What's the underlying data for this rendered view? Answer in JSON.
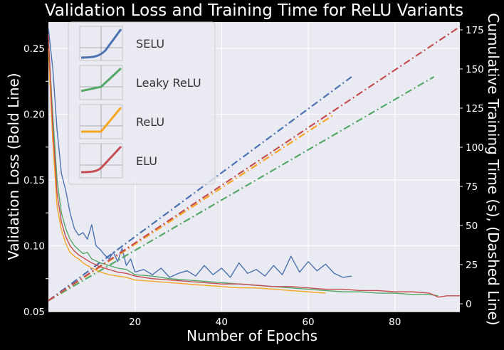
{
  "chart_data": {
    "type": "line",
    "title": "Validation Loss and Training Time for ReLU Variants",
    "xlabel": "Number of Epochs",
    "ylabel_left": "Validation Loss (Bold Line)",
    "ylabel_right": "Cumulative Training Time (s),  (Dashed Line)",
    "xlim": [
      0,
      95
    ],
    "ylim_left": [
      0.05,
      0.27
    ],
    "ylim_right": [
      -5,
      180
    ],
    "x_ticks": [
      20,
      40,
      60,
      80
    ],
    "y_ticks_left": [
      0.05,
      0.1,
      0.15,
      0.2,
      0.25
    ],
    "y_ticks_left_labels": [
      "0.05",
      "0.10",
      "0.15",
      "0.20",
      "0.25"
    ],
    "y_ticks_right": [
      0,
      25,
      50,
      75,
      100,
      125,
      150,
      175
    ],
    "grid": true,
    "legend_position": "top-left",
    "series": [
      {
        "name": "SELU",
        "color": "#4c72b0",
        "loss": [
          [
            0,
            0.265
          ],
          [
            1,
            0.235
          ],
          [
            2,
            0.188
          ],
          [
            3,
            0.155
          ],
          [
            4,
            0.142
          ],
          [
            5,
            0.125
          ],
          [
            6,
            0.113
          ],
          [
            7,
            0.108
          ],
          [
            8,
            0.11
          ],
          [
            9,
            0.105
          ],
          [
            10,
            0.116
          ],
          [
            11,
            0.1
          ],
          [
            12,
            0.097
          ],
          [
            13,
            0.093
          ],
          [
            14,
            0.09
          ],
          [
            15,
            0.095
          ],
          [
            16,
            0.088
          ],
          [
            17,
            0.098
          ],
          [
            18,
            0.085
          ],
          [
            19,
            0.09
          ],
          [
            20,
            0.08
          ],
          [
            22,
            0.082
          ],
          [
            24,
            0.078
          ],
          [
            26,
            0.083
          ],
          [
            28,
            0.076
          ],
          [
            30,
            0.079
          ],
          [
            32,
            0.081
          ],
          [
            34,
            0.077
          ],
          [
            36,
            0.085
          ],
          [
            38,
            0.078
          ],
          [
            40,
            0.083
          ],
          [
            42,
            0.076
          ],
          [
            44,
            0.087
          ],
          [
            46,
            0.079
          ],
          [
            48,
            0.082
          ],
          [
            50,
            0.077
          ],
          [
            52,
            0.085
          ],
          [
            54,
            0.078
          ],
          [
            56,
            0.092
          ],
          [
            58,
            0.08
          ],
          [
            60,
            0.088
          ],
          [
            62,
            0.081
          ],
          [
            64,
            0.086
          ],
          [
            66,
            0.079
          ],
          [
            68,
            0.076
          ],
          [
            70,
            0.077
          ]
        ],
        "time": [
          [
            0,
            2
          ],
          [
            70,
            145
          ]
        ]
      },
      {
        "name": "Leaky ReLU",
        "color": "#55a868",
        "loss": [
          [
            0,
            0.255
          ],
          [
            1,
            0.2
          ],
          [
            2,
            0.15
          ],
          [
            3,
            0.125
          ],
          [
            4,
            0.113
          ],
          [
            5,
            0.105
          ],
          [
            6,
            0.1
          ],
          [
            7,
            0.097
          ],
          [
            8,
            0.094
          ],
          [
            9,
            0.095
          ],
          [
            10,
            0.09
          ],
          [
            12,
            0.087
          ],
          [
            14,
            0.085
          ],
          [
            16,
            0.083
          ],
          [
            18,
            0.082
          ],
          [
            20,
            0.078
          ],
          [
            24,
            0.077
          ],
          [
            28,
            0.075
          ],
          [
            32,
            0.074
          ],
          [
            36,
            0.073
          ],
          [
            40,
            0.072
          ],
          [
            44,
            0.071
          ],
          [
            48,
            0.07
          ],
          [
            52,
            0.069
          ],
          [
            56,
            0.068
          ],
          [
            60,
            0.067
          ],
          [
            64,
            0.066
          ],
          [
            68,
            0.065
          ],
          [
            72,
            0.065
          ],
          [
            76,
            0.064
          ],
          [
            80,
            0.064
          ],
          [
            84,
            0.063
          ],
          [
            88,
            0.063
          ],
          [
            90,
            0.062
          ]
        ],
        "time": [
          [
            0,
            2
          ],
          [
            89,
            145
          ]
        ]
      },
      {
        "name": "ReLU",
        "color": "#f5a623",
        "loss": [
          [
            0,
            0.25
          ],
          [
            1,
            0.18
          ],
          [
            2,
            0.13
          ],
          [
            3,
            0.112
          ],
          [
            4,
            0.102
          ],
          [
            5,
            0.095
          ],
          [
            6,
            0.092
          ],
          [
            7,
            0.09
          ],
          [
            8,
            0.087
          ],
          [
            9,
            0.085
          ],
          [
            10,
            0.083
          ],
          [
            12,
            0.08
          ],
          [
            14,
            0.078
          ],
          [
            16,
            0.077
          ],
          [
            18,
            0.076
          ],
          [
            20,
            0.074
          ],
          [
            24,
            0.073
          ],
          [
            28,
            0.072
          ],
          [
            32,
            0.071
          ],
          [
            36,
            0.07
          ],
          [
            40,
            0.069
          ],
          [
            44,
            0.068
          ],
          [
            48,
            0.068
          ],
          [
            52,
            0.067
          ],
          [
            56,
            0.066
          ],
          [
            60,
            0.065
          ],
          [
            64,
            0.064
          ]
        ],
        "time": [
          [
            0,
            2
          ],
          [
            66,
            121
          ]
        ]
      },
      {
        "name": "ELU",
        "color": "#c44e52",
        "loss": [
          [
            0,
            0.26
          ],
          [
            1,
            0.19
          ],
          [
            2,
            0.14
          ],
          [
            3,
            0.118
          ],
          [
            4,
            0.107
          ],
          [
            5,
            0.1
          ],
          [
            6,
            0.096
          ],
          [
            7,
            0.093
          ],
          [
            8,
            0.091
          ],
          [
            9,
            0.089
          ],
          [
            10,
            0.087
          ],
          [
            12,
            0.084
          ],
          [
            14,
            0.082
          ],
          [
            16,
            0.08
          ],
          [
            18,
            0.079
          ],
          [
            20,
            0.077
          ],
          [
            24,
            0.075
          ],
          [
            28,
            0.074
          ],
          [
            32,
            0.073
          ],
          [
            36,
            0.072
          ],
          [
            40,
            0.071
          ],
          [
            44,
            0.071
          ],
          [
            48,
            0.07
          ],
          [
            52,
            0.069
          ],
          [
            56,
            0.069
          ],
          [
            60,
            0.068
          ],
          [
            64,
            0.067
          ],
          [
            68,
            0.067
          ],
          [
            72,
            0.066
          ],
          [
            76,
            0.066
          ],
          [
            80,
            0.065
          ],
          [
            84,
            0.065
          ],
          [
            88,
            0.064
          ],
          [
            90,
            0.061
          ],
          [
            92,
            0.062
          ],
          [
            95,
            0.062
          ]
        ],
        "time": [
          [
            0,
            2
          ],
          [
            95,
            177
          ]
        ]
      }
    ]
  }
}
